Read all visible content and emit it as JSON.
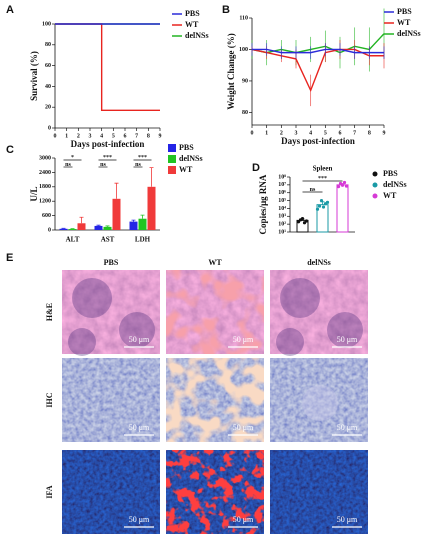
{
  "chart_data": [
    {
      "type": "line",
      "panel": "A",
      "ylabel": "Survival (%)",
      "xlabel": "Days post-infection",
      "x": [
        0,
        1,
        2,
        3,
        4,
        4,
        5,
        6,
        7,
        8,
        9
      ],
      "xlim": [
        0,
        9
      ],
      "xticks": [
        0,
        1,
        2,
        3,
        4,
        5,
        6,
        7,
        8,
        9
      ],
      "ylim": [
        0,
        100
      ],
      "yticks": [
        0,
        20,
        40,
        60,
        80,
        100
      ],
      "series": [
        {
          "name": "PBS",
          "color": "#2b2bd9",
          "values": [
            100,
            100,
            100,
            100,
            100,
            100,
            100,
            100,
            100,
            100,
            100
          ]
        },
        {
          "name": "WT",
          "color": "#e8241f",
          "values": [
            100,
            100,
            100,
            100,
            100,
            17,
            17,
            17,
            17,
            17,
            17
          ]
        },
        {
          "name": "delNSs",
          "color": "#22b422",
          "values": [
            100,
            100,
            100,
            100,
            100,
            100,
            100,
            100,
            100,
            100,
            100
          ]
        }
      ]
    },
    {
      "type": "line",
      "panel": "B",
      "ylabel": "Weight Change (%)",
      "xlabel": "Days post-infection",
      "x": [
        0,
        1,
        2,
        3,
        4,
        5,
        6,
        7,
        8,
        9
      ],
      "xlim": [
        0,
        9
      ],
      "xticks": [
        0,
        1,
        2,
        3,
        4,
        5,
        6,
        7,
        8,
        9
      ],
      "ylim": [
        76,
        110
      ],
      "yticks": [
        80,
        90,
        100,
        110
      ],
      "series": [
        {
          "name": "PBS",
          "color": "#2b2bd9",
          "values": [
            100,
            100,
            99,
            99,
            99,
            100,
            100,
            99,
            99,
            99
          ],
          "errors": [
            2,
            2,
            2,
            2,
            2,
            2,
            2,
            2,
            2,
            2
          ]
        },
        {
          "name": "WT",
          "color": "#e8241f",
          "values": [
            100,
            99,
            98,
            97,
            87,
            99,
            100,
            100,
            98,
            98
          ],
          "errors": [
            1,
            2,
            2,
            3,
            5,
            3,
            3,
            3,
            3,
            4
          ]
        },
        {
          "name": "delNSs",
          "color": "#22b422",
          "values": [
            100,
            99,
            100,
            99,
            100,
            101,
            99,
            101,
            100,
            105
          ],
          "errors": [
            3,
            4,
            3,
            4,
            4,
            5,
            5,
            6,
            7,
            8
          ]
        }
      ]
    },
    {
      "type": "bar",
      "panel": "C",
      "ylabel": "U/L",
      "categories": [
        "ALT",
        "AST",
        "LDH"
      ],
      "ylim": [
        0,
        3000
      ],
      "yticks": [
        0,
        600,
        1200,
        1800,
        2400,
        3000
      ],
      "series": [
        {
          "name": "PBS",
          "color": "#2424e6",
          "values": [
            50,
            170,
            350
          ],
          "errors": [
            20,
            30,
            60
          ]
        },
        {
          "name": "delNSs",
          "color": "#22c422",
          "values": [
            40,
            130,
            470
          ],
          "errors": [
            15,
            40,
            150
          ]
        },
        {
          "name": "WT",
          "color": "#f03a3a",
          "values": [
            280,
            1300,
            1800
          ],
          "errors": [
            250,
            650,
            800
          ]
        }
      ],
      "significance": [
        [
          "*",
          "ns"
        ],
        [
          "***",
          "ns"
        ],
        [
          "***",
          "ns"
        ]
      ]
    },
    {
      "type": "bar",
      "panel": "D",
      "title": "Spleen",
      "ylabel": "Copies/μg RNA",
      "log": true,
      "bar_style": "outline",
      "ylim": [
        10,
        100000000
      ],
      "yticks": [
        {
          "value": 10,
          "label": "10¹"
        },
        {
          "value": 100,
          "label": "10²"
        },
        {
          "value": 1000,
          "label": "10³"
        },
        {
          "value": 10000,
          "label": "10⁴"
        },
        {
          "value": 100000,
          "label": "10⁵"
        },
        {
          "value": 1000000,
          "label": "10⁶"
        },
        {
          "value": 10000000,
          "label": "10⁷"
        },
        {
          "value": 100000000,
          "label": "10⁸"
        }
      ],
      "series": [
        {
          "name": "PBS",
          "color": "#111111",
          "values": [
            300
          ],
          "errors": [
            150
          ],
          "points": [
            200,
            350,
            500,
            150,
            250
          ]
        },
        {
          "name": "delNSs",
          "color": "#1a9aa6",
          "values": [
            30000
          ],
          "errors": [
            40000
          ],
          "points": [
            8000,
            20000,
            100000,
            15000,
            40000,
            60000
          ]
        },
        {
          "name": "WT",
          "color": "#d63ad6",
          "values": [
            10000000
          ],
          "errors": [
            5000000
          ],
          "points": [
            6000000,
            15000000,
            9000000,
            20000000,
            7000000
          ]
        }
      ],
      "significance": [
        [
          "***",
          "ns"
        ]
      ]
    }
  ],
  "panel_e": {
    "label": "E",
    "columns": [
      "PBS",
      "WT",
      "delNSs"
    ],
    "rows": [
      "H&E",
      "IHC",
      "IFA"
    ],
    "scale_bar": "50 μm"
  }
}
